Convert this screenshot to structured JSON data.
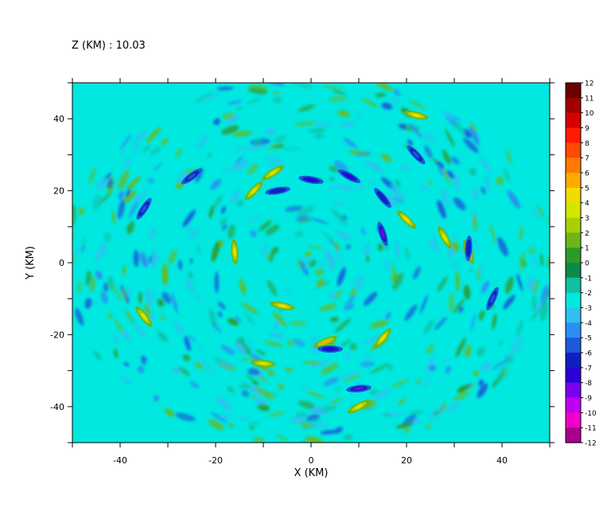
{
  "chart_data": {
    "type": "heatmap",
    "title": "Z (KM) : 10.03",
    "xlabel": "X (KM)",
    "ylabel": "Y (KM)",
    "xlim": [
      -50,
      50
    ],
    "ylim": [
      -50,
      50
    ],
    "x_ticks": [
      -40,
      -20,
      0,
      20,
      40
    ],
    "y_ticks": [
      -40,
      -20,
      0,
      20,
      40
    ],
    "x_tick_labels": [
      "-40",
      "-20",
      "0",
      "20",
      "40"
    ],
    "y_tick_labels": [
      "-40",
      "-20",
      "0",
      "20",
      "40"
    ],
    "colorbar": {
      "min": -12,
      "max": 12,
      "labels": [
        "12",
        "11",
        "10",
        "9",
        "8",
        "7",
        "6",
        "5",
        "4",
        "3",
        "2",
        "1",
        "0",
        "-1",
        "-2",
        "-3",
        "-4",
        "-5",
        "-6",
        "-7",
        "-8",
        "-9",
        "-10",
        "-11",
        "-12"
      ],
      "colors": [
        "#6b0000",
        "#a00000",
        "#d40000",
        "#ff1a00",
        "#ff4a00",
        "#ff7a00",
        "#ffaa00",
        "#f0dc00",
        "#d2e600",
        "#a8d000",
        "#6cb61a",
        "#2e9a2a",
        "#0c8a4a",
        "#10c0a0",
        "#00e8e0",
        "#30bfef",
        "#2a8ff0",
        "#1a5ad8",
        "#1020c0",
        "#2a00d8",
        "#7a00f0",
        "#c000f0",
        "#f000c8",
        "#a8008c",
        "#6a0060"
      ],
      "background_color": "#00e8e0"
    },
    "features": {
      "description": "turbulent spiral vorticity pattern",
      "positive_ridges": [
        {
          "x": 3,
          "y": -22,
          "value": 6
        },
        {
          "x": 15,
          "y": -21,
          "value": 5
        },
        {
          "x": 20,
          "y": 12,
          "value": 5
        },
        {
          "x": 28,
          "y": 7,
          "value": 4
        },
        {
          "x": -8,
          "y": 25,
          "value": 4
        },
        {
          "x": -12,
          "y": 20,
          "value": 4
        },
        {
          "x": -16,
          "y": 3,
          "value": 5
        },
        {
          "x": -6,
          "y": -12,
          "value": 5
        },
        {
          "x": 10,
          "y": -40,
          "value": 4
        },
        {
          "x": 22,
          "y": 41,
          "value": 5
        },
        {
          "x": 33,
          "y": 3,
          "value": 5
        },
        {
          "x": -35,
          "y": -15,
          "value": 4
        },
        {
          "x": -10,
          "y": -28,
          "value": 4
        }
      ],
      "negative_ridges": [
        {
          "x": 0,
          "y": 23,
          "value": -7
        },
        {
          "x": 8,
          "y": 24,
          "value": -7
        },
        {
          "x": 15,
          "y": 18,
          "value": -6
        },
        {
          "x": 15,
          "y": 8,
          "value": -8
        },
        {
          "x": 33,
          "y": 4,
          "value": -6
        },
        {
          "x": 10,
          "y": -35,
          "value": -8
        },
        {
          "x": 4,
          "y": -24,
          "value": -7
        },
        {
          "x": -7,
          "y": 20,
          "value": -6
        },
        {
          "x": -25,
          "y": 24,
          "value": -5
        },
        {
          "x": -35,
          "y": 15,
          "value": -5
        },
        {
          "x": 38,
          "y": -10,
          "value": -5
        },
        {
          "x": 22,
          "y": 30,
          "value": -5
        }
      ]
    }
  }
}
